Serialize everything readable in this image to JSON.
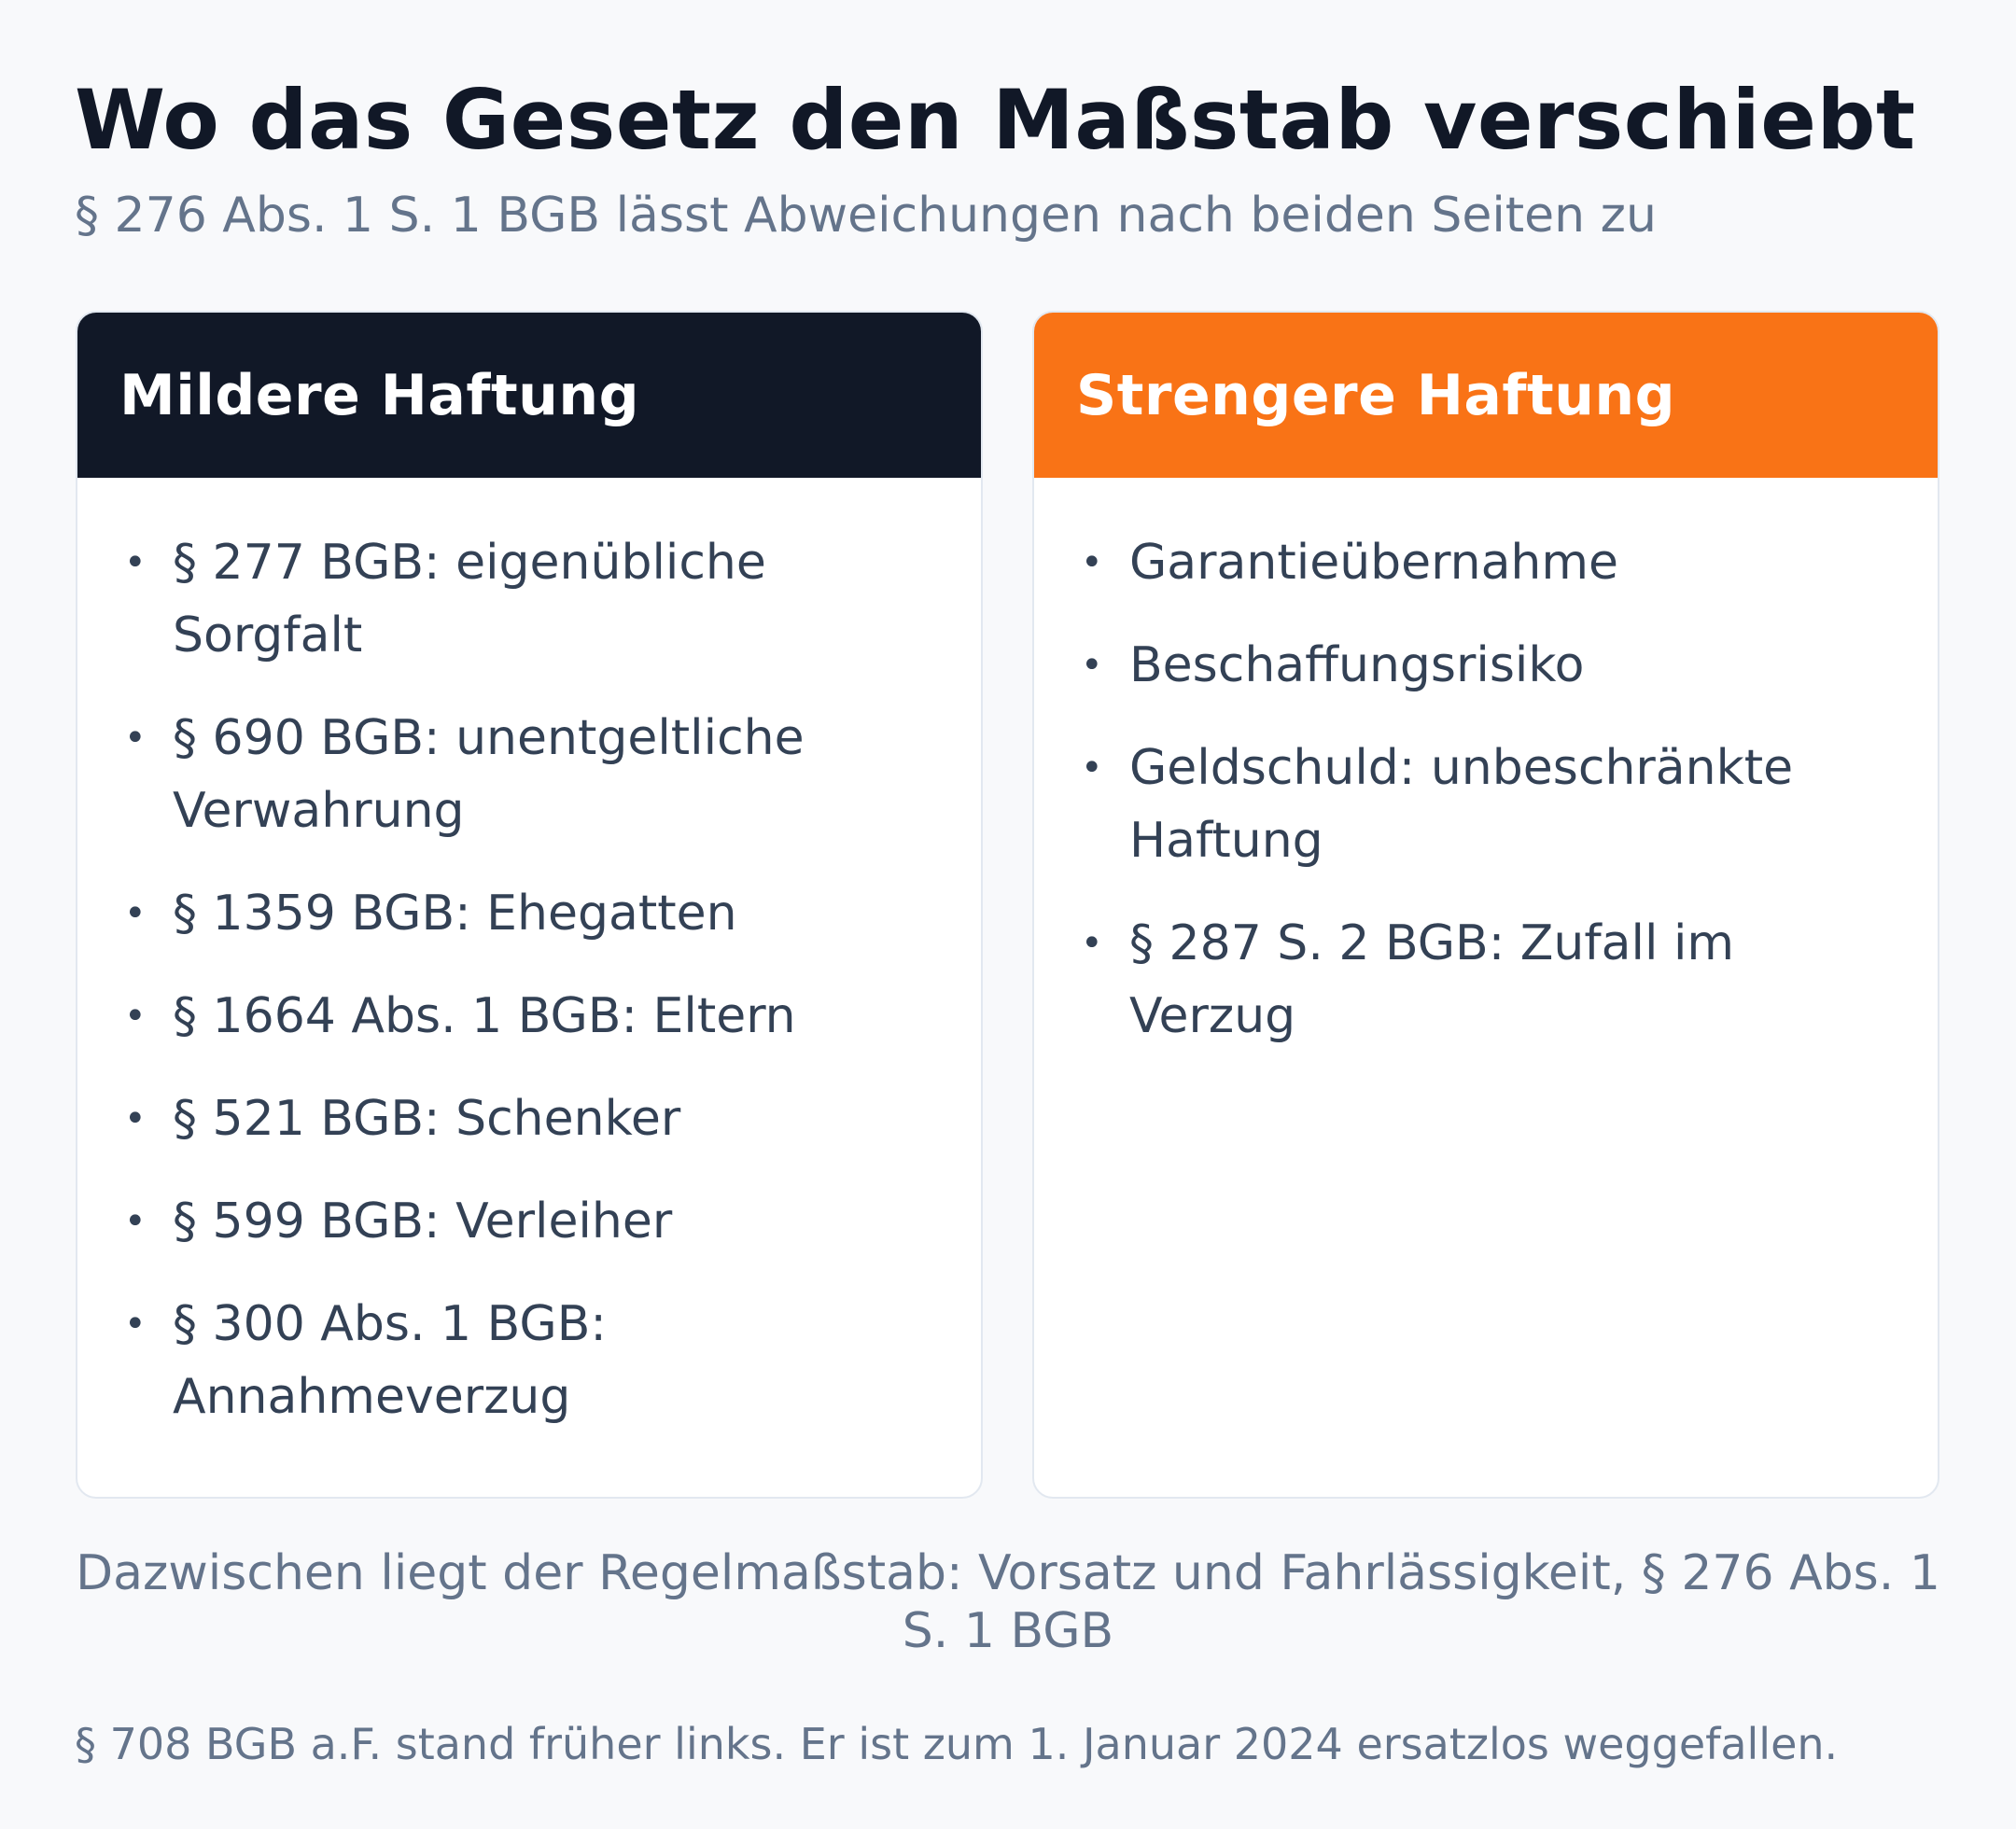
{
  "title": "Wo das Gesetz den Maßstab verschiebt",
  "subtitle": "§ 276 Abs. 1 S. 1 BGB lässt Abweichungen nach beiden Seiten zu",
  "left_card": {
    "heading": "Mildere Haftung",
    "items": [
      "§ 277 BGB: eigenübliche Sorgfalt",
      "§ 690 BGB: unentgeltliche Verwahrung",
      "§ 1359 BGB: Ehegatten",
      "§ 1664 Abs. 1 BGB: Eltern",
      "§ 521 BGB: Schenker",
      "§ 599 BGB: Verleiher",
      "§ 300 Abs. 1 BGB: Annahmeverzug"
    ]
  },
  "right_card": {
    "heading": "Strengere Haftung",
    "items": [
      "Garantieübernahme",
      "Beschaffungsrisiko",
      "Geldschuld: unbeschränkte Haftung",
      "§ 287 S. 2 BGB: Zufall im Verzug"
    ]
  },
  "note": "Dazwischen liegt der Regelmaßstab: Vorsatz und Fahrlässigkeit, § 276 Abs. 1 S. 1 BGB",
  "footnote": "§ 708 BGB a.F. stand früher links. Er ist zum 1. Januar 2024 ersatzlos weggefallen.",
  "colors": {
    "left_header": "#111827",
    "right_header": "#f97316",
    "background": "#f8f9fb"
  }
}
